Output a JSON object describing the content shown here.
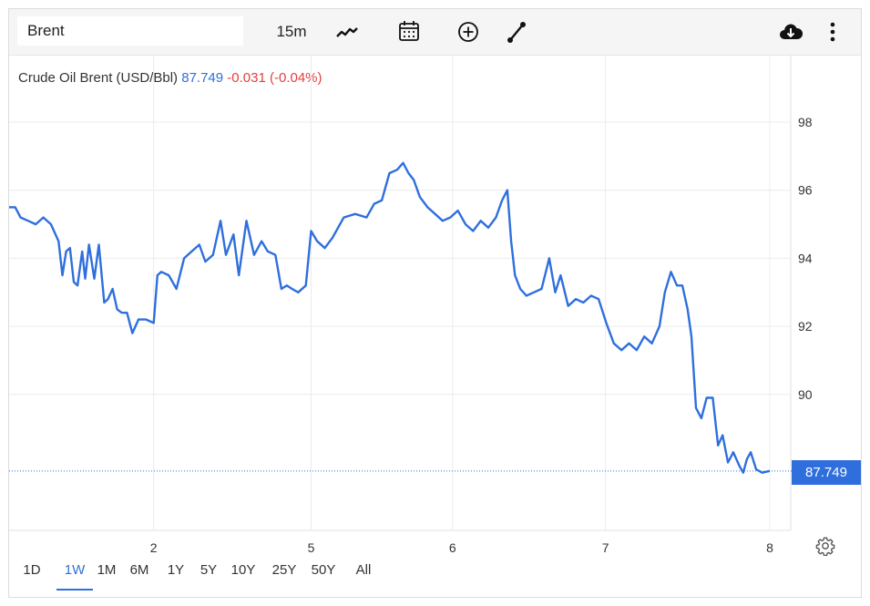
{
  "toolbar": {
    "symbol": "Brent",
    "interval": "15m",
    "icons": [
      "line-chart-icon",
      "calendar-icon",
      "plus-circle-icon",
      "draw-line-icon",
      "cloud-download-icon",
      "more-vertical-icon"
    ]
  },
  "legend": {
    "name": "Crude Oil Brent (USD/Bbl)",
    "price": "87.749",
    "change": "-0.031 (-0.04%)"
  },
  "price_tag": "87.749",
  "ranges": [
    "1D",
    "1W",
    "1M",
    "6M",
    "1Y",
    "5Y",
    "10Y",
    "25Y",
    "50Y",
    "All"
  ],
  "active_range": "1W",
  "colors": {
    "line": "#2f6fdd",
    "down": "#e0403f",
    "grid": "#ececec"
  },
  "chart_data": {
    "type": "line",
    "title": "",
    "xlabel": "",
    "ylabel": "",
    "xlim": [
      0,
      1
    ],
    "ylim": [
      84,
      99
    ],
    "x_tick_labels": [
      "2",
      "5",
      "6",
      "7",
      "8"
    ],
    "x_tick_positions": [
      0.19,
      0.397,
      0.583,
      0.784,
      1.0
    ],
    "y_ticks": [
      90,
      92,
      94,
      96,
      98
    ],
    "y_tick_labels": [
      "90",
      "92",
      "94",
      "96",
      "98"
    ],
    "last_value": 87.749,
    "grid": true,
    "series": [
      {
        "values": [
          [
            0.0,
            95.5
          ],
          [
            0.008,
            95.5
          ],
          [
            0.015,
            95.2
          ],
          [
            0.025,
            95.1
          ],
          [
            0.035,
            95.0
          ],
          [
            0.045,
            95.2
          ],
          [
            0.055,
            95.0
          ],
          [
            0.065,
            94.5
          ],
          [
            0.07,
            93.5
          ],
          [
            0.075,
            94.2
          ],
          [
            0.08,
            94.3
          ],
          [
            0.085,
            93.3
          ],
          [
            0.09,
            93.2
          ],
          [
            0.096,
            94.2
          ],
          [
            0.1,
            93.4
          ],
          [
            0.105,
            94.4
          ],
          [
            0.112,
            93.4
          ],
          [
            0.118,
            94.4
          ],
          [
            0.125,
            92.7
          ],
          [
            0.13,
            92.8
          ],
          [
            0.136,
            93.1
          ],
          [
            0.142,
            92.5
          ],
          [
            0.148,
            92.4
          ],
          [
            0.155,
            92.4
          ],
          [
            0.162,
            91.8
          ],
          [
            0.17,
            92.2
          ],
          [
            0.18,
            92.2
          ],
          [
            0.19,
            92.1
          ],
          [
            0.195,
            93.5
          ],
          [
            0.2,
            93.6
          ],
          [
            0.21,
            93.5
          ],
          [
            0.22,
            93.1
          ],
          [
            0.23,
            94.0
          ],
          [
            0.24,
            94.2
          ],
          [
            0.25,
            94.4
          ],
          [
            0.258,
            93.9
          ],
          [
            0.268,
            94.1
          ],
          [
            0.278,
            95.1
          ],
          [
            0.285,
            94.1
          ],
          [
            0.295,
            94.7
          ],
          [
            0.302,
            93.5
          ],
          [
            0.312,
            95.1
          ],
          [
            0.322,
            94.1
          ],
          [
            0.332,
            94.5
          ],
          [
            0.34,
            94.2
          ],
          [
            0.35,
            94.1
          ],
          [
            0.358,
            93.1
          ],
          [
            0.365,
            93.2
          ],
          [
            0.372,
            93.1
          ],
          [
            0.38,
            93.0
          ],
          [
            0.39,
            93.2
          ],
          [
            0.397,
            94.8
          ],
          [
            0.405,
            94.5
          ],
          [
            0.415,
            94.3
          ],
          [
            0.425,
            94.6
          ],
          [
            0.44,
            95.2
          ],
          [
            0.455,
            95.3
          ],
          [
            0.47,
            95.2
          ],
          [
            0.48,
            95.6
          ],
          [
            0.49,
            95.7
          ],
          [
            0.5,
            96.5
          ],
          [
            0.51,
            96.6
          ],
          [
            0.518,
            96.8
          ],
          [
            0.525,
            96.5
          ],
          [
            0.532,
            96.3
          ],
          [
            0.54,
            95.8
          ],
          [
            0.55,
            95.5
          ],
          [
            0.56,
            95.3
          ],
          [
            0.57,
            95.1
          ],
          [
            0.58,
            95.2
          ],
          [
            0.59,
            95.4
          ],
          [
            0.6,
            95.0
          ],
          [
            0.61,
            94.8
          ],
          [
            0.62,
            95.1
          ],
          [
            0.63,
            94.9
          ],
          [
            0.64,
            95.2
          ],
          [
            0.648,
            95.7
          ],
          [
            0.655,
            96.0
          ],
          [
            0.66,
            94.5
          ],
          [
            0.665,
            93.5
          ],
          [
            0.672,
            93.1
          ],
          [
            0.68,
            92.9
          ],
          [
            0.69,
            93.0
          ],
          [
            0.7,
            93.1
          ],
          [
            0.71,
            94.0
          ],
          [
            0.718,
            93.0
          ],
          [
            0.725,
            93.5
          ],
          [
            0.735,
            92.6
          ],
          [
            0.745,
            92.8
          ],
          [
            0.755,
            92.7
          ],
          [
            0.765,
            92.9
          ],
          [
            0.775,
            92.8
          ],
          [
            0.785,
            92.1
          ],
          [
            0.795,
            91.5
          ],
          [
            0.805,
            91.3
          ],
          [
            0.815,
            91.5
          ],
          [
            0.825,
            91.3
          ],
          [
            0.835,
            91.7
          ],
          [
            0.845,
            91.5
          ],
          [
            0.855,
            92.0
          ],
          [
            0.862,
            93.0
          ],
          [
            0.87,
            93.6
          ],
          [
            0.878,
            93.2
          ],
          [
            0.885,
            93.2
          ],
          [
            0.892,
            92.5
          ],
          [
            0.897,
            91.7
          ],
          [
            0.903,
            89.6
          ],
          [
            0.91,
            89.3
          ],
          [
            0.917,
            89.9
          ],
          [
            0.925,
            89.9
          ],
          [
            0.932,
            88.5
          ],
          [
            0.938,
            88.8
          ],
          [
            0.945,
            88.0
          ],
          [
            0.952,
            88.3
          ],
          [
            0.96,
            87.9
          ],
          [
            0.965,
            87.7
          ],
          [
            0.97,
            88.1
          ],
          [
            0.975,
            88.3
          ],
          [
            0.982,
            87.8
          ],
          [
            0.99,
            87.7
          ],
          [
            1.0,
            87.75
          ]
        ]
      }
    ]
  }
}
